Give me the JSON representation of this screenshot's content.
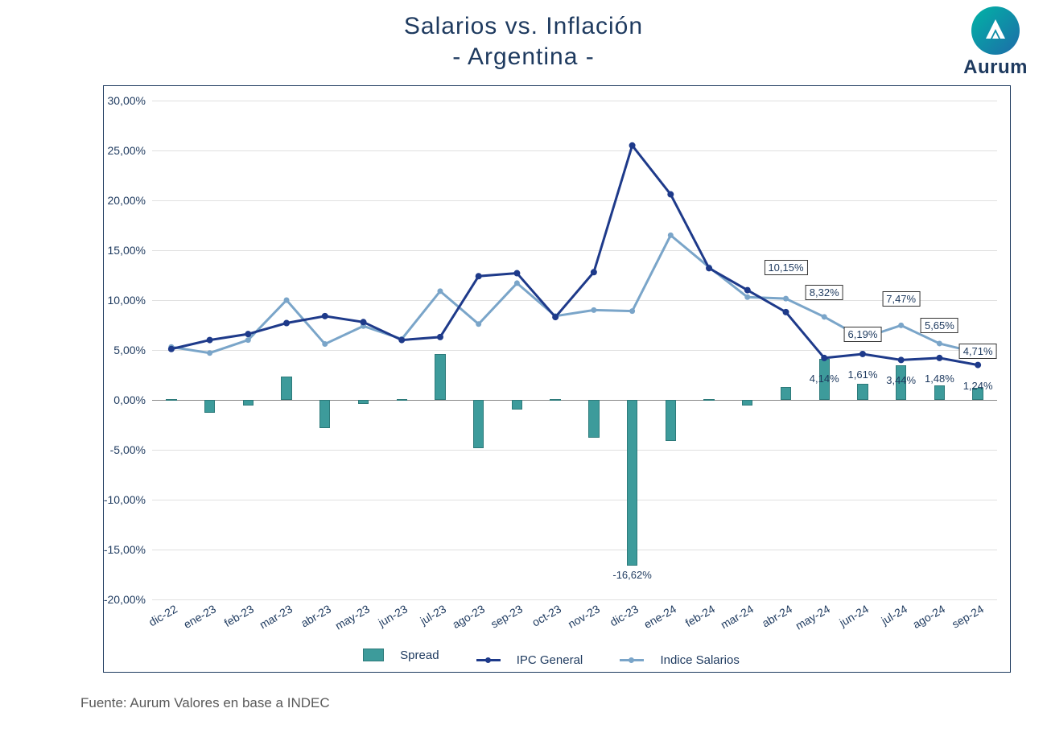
{
  "title": "Salarios vs. Inflación",
  "subtitle": "- Argentina -",
  "brand": "Aurum",
  "footer": "Fuente: Aurum Valores en base a INDEC",
  "legend": {
    "spread": "Spread",
    "ipc": "IPC General",
    "sal": "Indice Salarios"
  },
  "chart": {
    "type": "combo-bar-line",
    "ylim": [
      -20,
      30
    ],
    "ytick_step": 5,
    "yticks": [
      "-20,00%",
      "-15,00%",
      "-10,00%",
      "-5,00%",
      "0,00%",
      "5,00%",
      "10,00%",
      "15,00%",
      "20,00%",
      "25,00%",
      "30,00%"
    ],
    "categories": [
      "dic-22",
      "ene-23",
      "feb-23",
      "mar-23",
      "abr-23",
      "may-23",
      "jun-23",
      "jul-23",
      "ago-23",
      "sep-23",
      "oct-23",
      "nov-23",
      "dic-23",
      "ene-24",
      "feb-24",
      "mar-24",
      "abr-24",
      "may-24",
      "jun-24",
      "jul-24",
      "ago-24",
      "sep-24"
    ],
    "spread": [
      0.1,
      -1.3,
      -0.6,
      2.3,
      -2.8,
      -0.4,
      0.1,
      4.6,
      -4.8,
      -1.0,
      0.1,
      -3.8,
      -16.62,
      -4.1,
      0.1,
      -0.6,
      1.26,
      4.14,
      1.61,
      3.44,
      1.48,
      1.24
    ],
    "ipc": [
      5.1,
      6.0,
      6.6,
      7.7,
      8.4,
      7.8,
      6.0,
      6.3,
      12.4,
      12.7,
      8.3,
      12.8,
      25.5,
      20.6,
      13.2,
      11.0,
      8.8,
      4.2,
      4.6,
      4.0,
      4.2,
      3.5
    ],
    "salarios": [
      5.3,
      4.7,
      6.0,
      10.0,
      5.6,
      7.4,
      6.1,
      10.9,
      7.6,
      11.7,
      8.4,
      9.0,
      8.9,
      16.5,
      13.3,
      10.3,
      10.15,
      8.32,
      6.19,
      7.47,
      5.65,
      4.71
    ],
    "bar_color": "#3d9b9b",
    "bar_border": "#2d7a7a",
    "ipc_color": "#1e3a8a",
    "sal_color": "#7aa5c9",
    "grid_color": "#e0e0e0",
    "big_label": {
      "idx": 12,
      "text": "-16,62%"
    },
    "sal_box_labels": [
      {
        "idx": 16,
        "text": "10,15%"
      },
      {
        "idx": 17,
        "text": "8,32%"
      },
      {
        "idx": 18,
        "text": "6,19%"
      },
      {
        "idx": 19,
        "text": "7,47%"
      },
      {
        "idx": 20,
        "text": "5,65%"
      },
      {
        "idx": 21,
        "text": "4,71%"
      }
    ],
    "ipc_plain_labels": [
      {
        "idx": 17,
        "text": "4,14%"
      },
      {
        "idx": 18,
        "text": "1,61%"
      },
      {
        "idx": 19,
        "text": "3,44%"
      },
      {
        "idx": 20,
        "text": "1,48%"
      },
      {
        "idx": 21,
        "text": "1,24%"
      }
    ]
  }
}
